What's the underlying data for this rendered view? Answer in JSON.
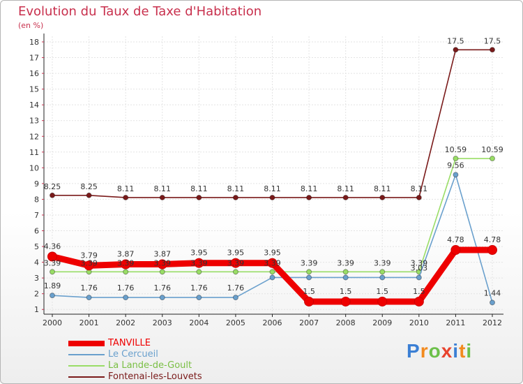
{
  "title": "Evolution du Taux de Taxe d'Habitation",
  "subtitle": "(en %)",
  "logo_text": "Proxiti",
  "chart_data": {
    "type": "line",
    "title": "Evolution du Taux de Taxe d'Habitation",
    "ylabel": "(en %)",
    "xlabel": "",
    "ylim": [
      1,
      18
    ],
    "yticks": [
      1,
      2,
      3,
      4,
      5,
      6,
      7,
      8,
      9,
      10,
      11,
      12,
      13,
      14,
      15,
      16,
      17,
      18
    ],
    "categories": [
      "2000",
      "2001",
      "2002",
      "2003",
      "2004",
      "2005",
      "2006",
      "2007",
      "2008",
      "2009",
      "2010",
      "2011",
      "2012"
    ],
    "series": [
      {
        "name": "TANVILLE",
        "color": "#ee0000",
        "values": [
          4.36,
          3.79,
          3.87,
          3.87,
          3.95,
          3.95,
          3.95,
          1.5,
          1.5,
          1.5,
          1.5,
          4.78,
          4.78
        ],
        "labels": [
          "4.36",
          "3.79",
          "3.87",
          "3.87",
          "3.95",
          "3.95",
          "3.95",
          "1.5",
          "1.5",
          "1.5",
          "1.5",
          "4.78",
          "4.78"
        ]
      },
      {
        "name": "Le Cercueil",
        "color": "#6aa0cd",
        "values": [
          1.89,
          1.76,
          1.76,
          1.76,
          1.76,
          1.76,
          3.03,
          3.03,
          3.03,
          3.03,
          3.03,
          9.56,
          1.44
        ],
        "labels": [
          "1.89",
          "1.76",
          "1.76",
          "1.76",
          "1.76",
          "1.76",
          "",
          "",
          "",
          "",
          "3.03",
          "9.56",
          "1.44"
        ]
      },
      {
        "name": "La Lande-de-Goult",
        "color": "#99dd66",
        "values": [
          3.39,
          3.39,
          3.39,
          3.39,
          3.39,
          3.39,
          3.39,
          3.39,
          3.39,
          3.39,
          3.39,
          10.59,
          10.59
        ],
        "labels": [
          "3.39",
          "3.39",
          "3.39",
          "3.39",
          "3.39",
          "3.39",
          "3.39",
          "3.39",
          "3.39",
          "3.39",
          "3.39",
          "10.59",
          "10.59"
        ]
      },
      {
        "name": "Fontenai-les-Louvets",
        "color": "#7a1a1a",
        "values": [
          8.25,
          8.25,
          8.11,
          8.11,
          8.11,
          8.11,
          8.11,
          8.11,
          8.11,
          8.11,
          8.11,
          17.5,
          17.5
        ],
        "labels": [
          "8.25",
          "8.25",
          "8.11",
          "8.11",
          "8.11",
          "8.11",
          "8.11",
          "8.11",
          "8.11",
          "8.11",
          "8.11",
          "17.5",
          "17.5"
        ]
      }
    ]
  }
}
